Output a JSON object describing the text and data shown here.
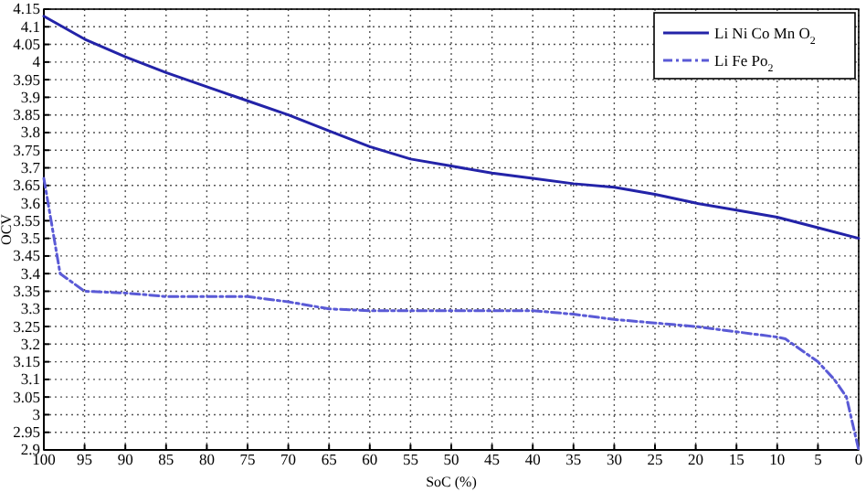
{
  "chart_data": {
    "type": "line",
    "xlabel": "SoC (%)",
    "ylabel": "OCV",
    "xlim": [
      100,
      0
    ],
    "xticks": [
      100,
      95,
      90,
      85,
      80,
      75,
      70,
      65,
      60,
      55,
      50,
      45,
      40,
      35,
      30,
      25,
      20,
      15,
      10,
      5,
      0
    ],
    "ylim": [
      2.9,
      4.15
    ],
    "yticks": [
      2.9,
      2.95,
      3,
      3.05,
      3.1,
      3.15,
      3.2,
      3.25,
      3.3,
      3.35,
      3.4,
      3.45,
      3.5,
      3.55,
      3.6,
      3.65,
      3.7,
      3.75,
      3.8,
      3.85,
      3.9,
      3.95,
      4,
      4.05,
      4.1,
      4.15
    ],
    "grid": true,
    "legend": "top right",
    "series": [
      {
        "name": "Li Ni Co Mn O$_{2}$",
        "color": "#2323a8",
        "line_style": "solid",
        "x": [
          100,
          95,
          90,
          85,
          80,
          75,
          70,
          65,
          60,
          55,
          50,
          45,
          40,
          35,
          30,
          25,
          20,
          15,
          10,
          5,
          0
        ],
        "values": [
          4.13,
          4.065,
          4.015,
          3.97,
          3.93,
          3.89,
          3.85,
          3.805,
          3.76,
          3.725,
          3.705,
          3.685,
          3.67,
          3.655,
          3.645,
          3.625,
          3.6,
          3.58,
          3.56,
          3.53,
          3.5
        ]
      },
      {
        "name": "Li Fe Po$_{2}$",
        "color": "#5a5ad6",
        "line_style": "dashed",
        "x": [
          100,
          98,
          95,
          90,
          85,
          80,
          75,
          70,
          65,
          60,
          55,
          50,
          45,
          40,
          35,
          30,
          25,
          20,
          15,
          10,
          9,
          5,
          3,
          1.5,
          0
        ],
        "values": [
          3.67,
          3.4,
          3.35,
          3.345,
          3.335,
          3.335,
          3.335,
          3.32,
          3.3,
          3.295,
          3.295,
          3.295,
          3.295,
          3.295,
          3.285,
          3.27,
          3.26,
          3.25,
          3.235,
          3.22,
          3.215,
          3.15,
          3.1,
          3.05,
          2.9
        ]
      }
    ]
  }
}
